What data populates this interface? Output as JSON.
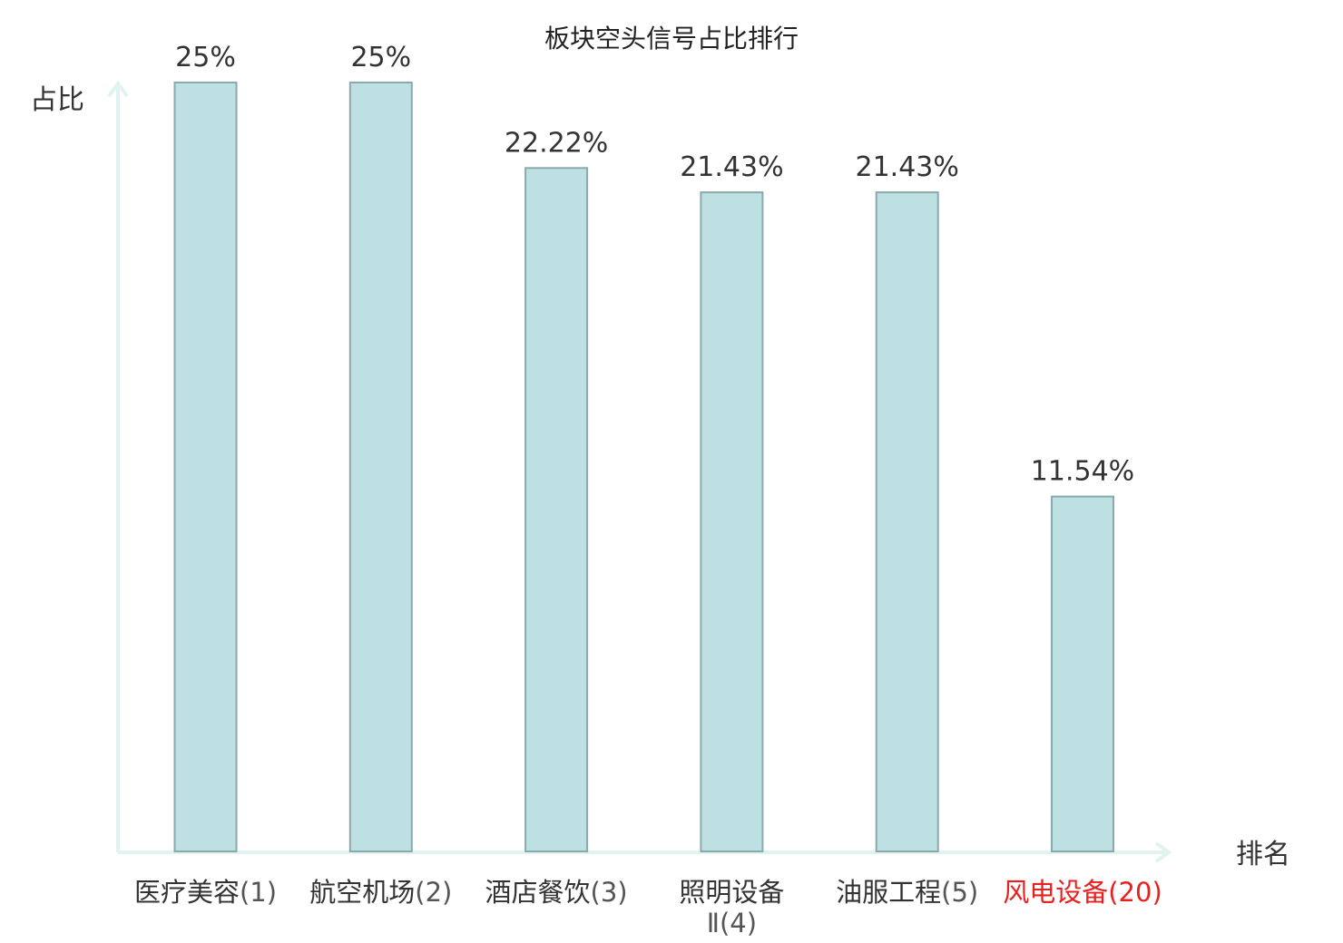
{
  "chart_data": {
    "type": "bar",
    "title": "板块空头信号占比排行",
    "ylabel": "占比",
    "xlabel": "排名",
    "ylim": [
      0,
      25
    ],
    "grid": false,
    "categories": [
      {
        "name": "医疗美容",
        "rank": "(1)",
        "highlight": false
      },
      {
        "name": "航空机场",
        "rank": "(2)",
        "highlight": false
      },
      {
        "name": "酒店餐饮",
        "rank": "(3)",
        "highlight": false
      },
      {
        "name": "照明设备",
        "name_line2": "Ⅱ",
        "rank": "(4)",
        "highlight": false
      },
      {
        "name": "油服工程",
        "rank": "(5)",
        "highlight": false
      },
      {
        "name": "风电设备",
        "rank": "(20)",
        "highlight": true
      }
    ],
    "values": [
      25,
      25,
      22.22,
      21.43,
      21.43,
      11.54
    ],
    "value_labels": [
      "25%",
      "25%",
      "22.22%",
      "21.43%",
      "21.43%",
      "11.54%"
    ]
  },
  "colors": {
    "bar_fill": "#bde1e3",
    "bar_stroke": "#8aa9ab",
    "axis": "#e0f3f0",
    "text": "#333333",
    "rank_text": "#555555",
    "highlight": "#e8201e"
  }
}
